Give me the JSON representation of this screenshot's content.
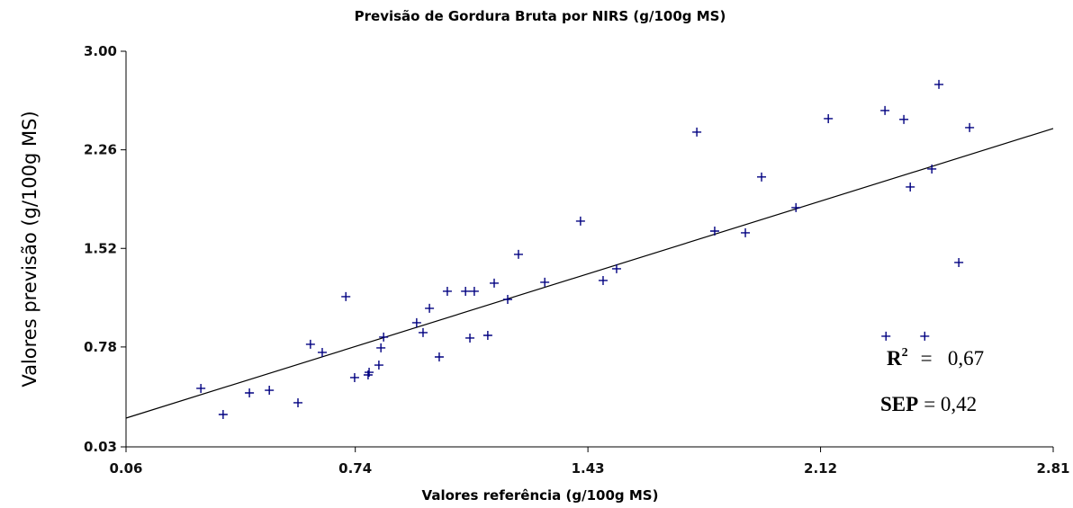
{
  "chart_data": {
    "type": "scatter",
    "title": "Previsão de Gordura Bruta por NIRS (g/100g MS)",
    "x_label": "Valores referência (g/100g MS)",
    "y_label": "Valores previsão (g/100g MS)",
    "color": "#000080",
    "x": [
      0.282,
      0.348,
      0.426,
      0.485,
      0.57,
      0.607,
      0.642,
      0.712,
      0.738,
      0.778,
      0.781,
      0.81,
      0.816,
      0.824,
      0.922,
      0.941,
      0.96,
      0.989,
      1.013,
      1.067,
      1.093,
      1.08,
      1.133,
      1.152,
      1.192,
      1.224,
      1.302,
      1.408,
      1.475,
      1.515,
      1.753,
      1.806,
      1.897,
      1.945,
      2.047,
      2.143,
      2.311,
      2.314,
      2.367,
      2.386,
      2.429,
      2.45,
      2.471,
      2.53,
      2.562
    ],
    "values": [
      0.469,
      0.273,
      0.435,
      0.455,
      0.361,
      0.8,
      0.739,
      1.158,
      0.55,
      0.57,
      0.59,
      0.644,
      0.773,
      0.854,
      0.962,
      0.888,
      1.07,
      0.705,
      1.198,
      1.198,
      1.198,
      0.847,
      0.867,
      1.259,
      1.137,
      1.475,
      1.266,
      1.725,
      1.279,
      1.367,
      2.393,
      1.65,
      1.637,
      2.056,
      1.826,
      2.494,
      2.555,
      0.861,
      2.488,
      1.981,
      0.861,
      2.116,
      2.751,
      1.414,
      2.427
    ],
    "fit": {
      "color": "#000000",
      "x": [
        0.06,
        2.81
      ],
      "y": [
        0.246,
        2.42
      ]
    },
    "xlim": [
      0.06,
      2.81
    ],
    "xticks": [
      0.06,
      0.74,
      1.43,
      2.12,
      2.81
    ],
    "ylim": [
      0.03,
      3
    ],
    "yticks": [
      0.03,
      0.78,
      1.52,
      2.26,
      {
        "value": 3,
        "label": "3.00"
      }
    ],
    "annotations": [
      {
        "label": "R",
        "sup": "2",
        "text": "=   0,67"
      },
      {
        "label": "SEP",
        "text": "= 0,42"
      }
    ]
  }
}
